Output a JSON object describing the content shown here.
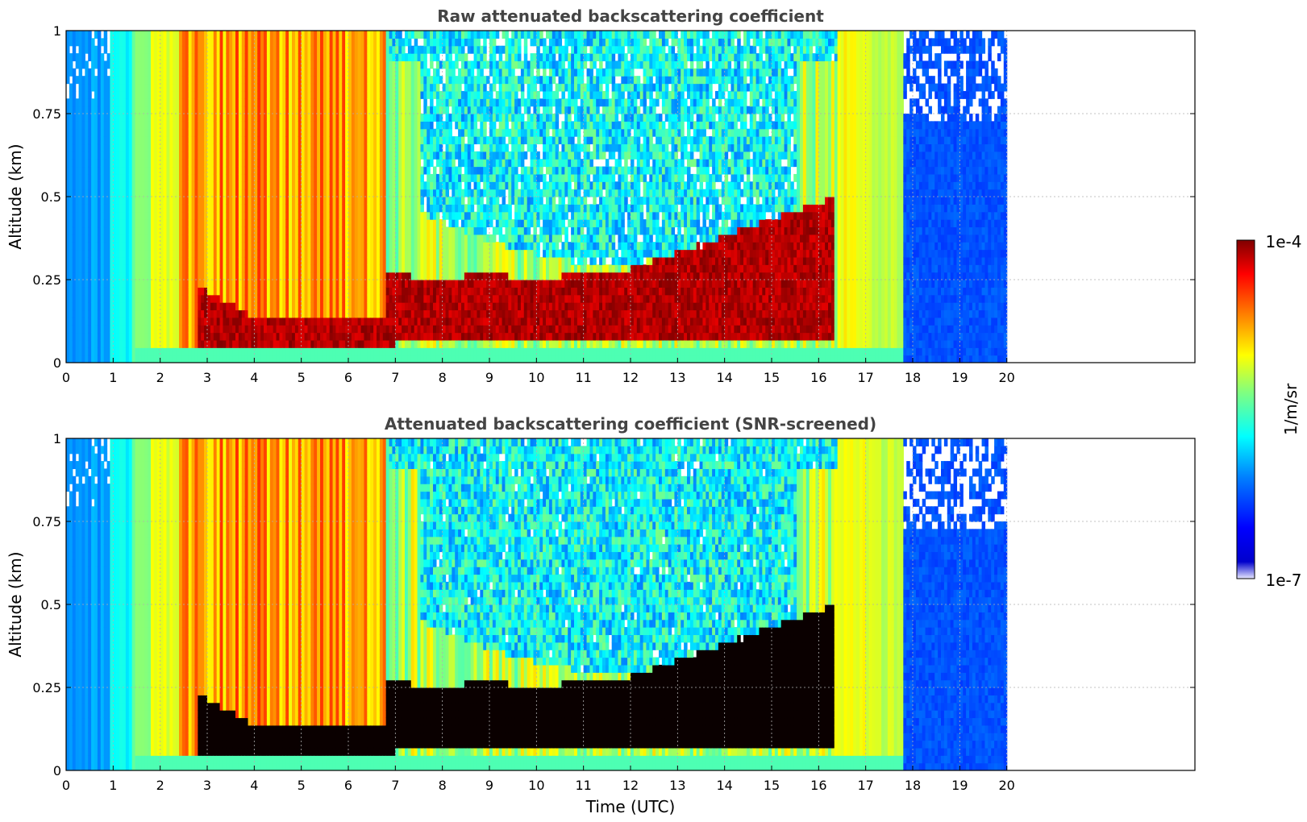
{
  "chart_data": [
    {
      "type": "heatmap",
      "title": "Raw attenuated backscattering coefficient",
      "xlabel": "",
      "ylabel": "Altitude (km)",
      "xlim": [
        0,
        24
      ],
      "ylim": [
        0,
        1
      ],
      "xticks": [
        "0",
        "1",
        "2",
        "3",
        "4",
        "5",
        "6",
        "7",
        "8",
        "9",
        "10",
        "11",
        "12",
        "13",
        "14",
        "15",
        "16",
        "17",
        "18",
        "19",
        "20"
      ],
      "yticks": [
        "0",
        "0.25",
        "0.5",
        "0.75",
        "1"
      ],
      "grid": true,
      "data_extent_hours": [
        0,
        20
      ],
      "screened": false
    },
    {
      "type": "heatmap",
      "title": "Attenuated backscattering coefficient (SNR-screened)",
      "xlabel": "Time (UTC)",
      "ylabel": "Altitude (km)",
      "xlim": [
        0,
        24
      ],
      "ylim": [
        0,
        1
      ],
      "xticks": [
        "0",
        "1",
        "2",
        "3",
        "4",
        "5",
        "6",
        "7",
        "8",
        "9",
        "10",
        "11",
        "12",
        "13",
        "14",
        "15",
        "16",
        "17",
        "18",
        "19",
        "20"
      ],
      "yticks": [
        "0",
        "0.25",
        "0.5",
        "0.75",
        "1"
      ],
      "grid": true,
      "data_extent_hours": [
        0,
        20
      ],
      "screened": true
    }
  ],
  "colorbar": {
    "label": "1/m/sr",
    "max_label": "1e-4",
    "min_label": "1e-7",
    "colormap": "jet",
    "colors": [
      "#7f0000",
      "#ff0000",
      "#ff7f00",
      "#ffff00",
      "#7fff7f",
      "#00ffff",
      "#007fff",
      "#0000ff",
      "#00007f"
    ]
  }
}
